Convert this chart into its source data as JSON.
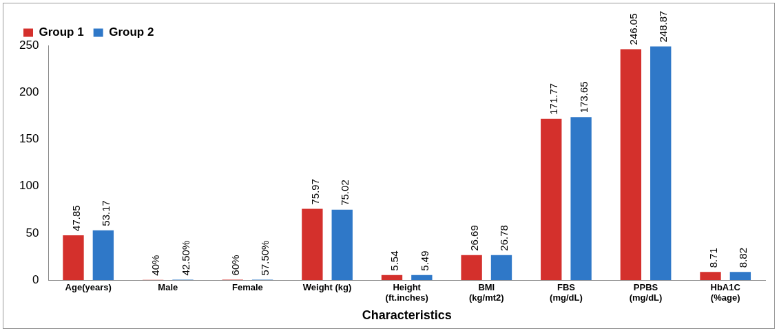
{
  "chart_data": {
    "type": "bar",
    "xlabel": "Characteristics",
    "categories": [
      "Age(years)",
      "Male",
      "Female",
      "Weight (kg)",
      "Height\n(ft.inches)",
      "BMI\n(kg/mt2)",
      "FBS\n(mg/dL)",
      "PPBS\n(mg/dL)",
      "HbA1C\n(%age)"
    ],
    "series": [
      {
        "name": "Group 1",
        "color": "#d4302c",
        "values": [
          47.85,
          0.4,
          0.6,
          75.97,
          5.54,
          26.69,
          171.77,
          246.05,
          8.71
        ],
        "value_labels": [
          "47.85",
          "40%",
          "60%",
          "75.97",
          "5.54",
          "26.69",
          "171.77",
          "246.05",
          "8.71"
        ]
      },
      {
        "name": "Group 2",
        "color": "#2f78c8",
        "values": [
          53.17,
          0.425,
          0.575,
          75.02,
          5.49,
          26.78,
          173.65,
          248.87,
          8.82
        ],
        "value_labels": [
          "53.17",
          "42.50%",
          "57.50%",
          "75.02",
          "5.49",
          "26.78",
          "173.65",
          "248.87",
          "8.82"
        ]
      }
    ],
    "ylim": [
      0,
      250
    ],
    "yticks": [
      0,
      50,
      100,
      150,
      200,
      250
    ],
    "grid": false,
    "legend": "top left"
  }
}
